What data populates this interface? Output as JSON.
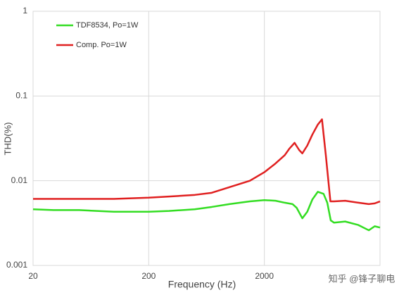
{
  "chart_data": {
    "type": "line",
    "xlabel": "Frequency (Hz)",
    "ylabel": "THD(%)",
    "xscale": "log",
    "yscale": "log",
    "xlim": [
      20,
      20000
    ],
    "ylim": [
      0.001,
      1
    ],
    "xticks": [
      20,
      200,
      2000
    ],
    "yticks": [
      0.001,
      0.01,
      0.1,
      1
    ],
    "grid": true,
    "legend": "upper left",
    "watermark": "知乎 @锋子聊电",
    "series": [
      {
        "name": "TDF8534, Po=1W",
        "color": "#33dd22",
        "x": [
          20,
          30,
          50,
          100,
          200,
          300,
          500,
          700,
          1000,
          1500,
          2000,
          2500,
          3000,
          3500,
          3800,
          4260,
          4700,
          5200,
          5800,
          6500,
          7000,
          7500,
          8000,
          10000,
          13000,
          16000,
          18000,
          20000
        ],
        "values": [
          0.0046,
          0.0045,
          0.0045,
          0.0043,
          0.0043,
          0.0044,
          0.0046,
          0.0049,
          0.0053,
          0.0057,
          0.0059,
          0.0058,
          0.0055,
          0.0053,
          0.0048,
          0.0036,
          0.0043,
          0.006,
          0.0074,
          0.007,
          0.0055,
          0.0034,
          0.0032,
          0.0033,
          0.003,
          0.0026,
          0.0029,
          0.0028
        ]
      },
      {
        "name": "Comp. Po=1W",
        "color": "#e02020",
        "x": [
          20,
          30,
          50,
          100,
          200,
          300,
          500,
          700,
          1000,
          1500,
          2000,
          2500,
          3000,
          3300,
          3650,
          4000,
          4260,
          4700,
          5200,
          5800,
          6300,
          6800,
          7450,
          8000,
          10000,
          13000,
          16000,
          18000,
          20000
        ],
        "values": [
          0.0061,
          0.0061,
          0.0061,
          0.0061,
          0.0063,
          0.0065,
          0.0068,
          0.0072,
          0.0084,
          0.01,
          0.0126,
          0.016,
          0.02,
          0.024,
          0.028,
          0.023,
          0.021,
          0.026,
          0.035,
          0.046,
          0.053,
          0.02,
          0.0057,
          0.0057,
          0.0058,
          0.0055,
          0.0053,
          0.0054,
          0.0057
        ]
      }
    ]
  }
}
